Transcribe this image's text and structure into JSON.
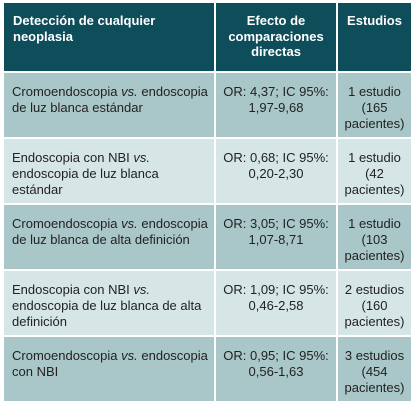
{
  "header": {
    "col1": "Detección de cualquier neoplasia",
    "col2_line1": "Efecto de",
    "col2_line2": "comparaciones",
    "col2_line3": "directas",
    "col3": "Estudios"
  },
  "rows": [
    {
      "comp_a": "Cromoendoscopia",
      "comp_vs": "vs.",
      "comp_b": "endoscopia de luz blanca estándar",
      "effect_line1": "OR: 4,37; IC 95%:",
      "effect_line2": "1,97-9,68",
      "studies_line1": "1 estudio",
      "studies_line2": "(165",
      "studies_line3": "pacientes)"
    },
    {
      "comp_a": "Endoscopia con NBI",
      "comp_vs": "vs.",
      "comp_b": "endoscopia de luz blanca estándar",
      "effect_line1": "OR: 0,68; IC 95%:",
      "effect_line2": "0,20-2,30",
      "studies_line1": "1 estudio",
      "studies_line2": "(42",
      "studies_line3": "pacientes)"
    },
    {
      "comp_a": "Cromoendoscopia",
      "comp_vs": "vs.",
      "comp_b": "endoscopia de luz blanca de alta definición",
      "effect_line1": "OR: 3,05; IC 95%:",
      "effect_line2": "1,07-8,71",
      "studies_line1": "1 estudio",
      "studies_line2": "(103",
      "studies_line3": "pacientes)"
    },
    {
      "comp_a": "Endoscopia con NBI",
      "comp_vs": "vs.",
      "comp_b": "endoscopia de luz blanca de alta definición",
      "effect_line1": "OR: 1,09; IC 95%:",
      "effect_line2": "0,46-2,58",
      "studies_line1": "2 estudios",
      "studies_line2": "(160",
      "studies_line3": "pacientes)"
    },
    {
      "comp_a": "Cromoendoscopia",
      "comp_vs": "vs.",
      "comp_b": "endoscopia con NBI",
      "effect_line1": "OR: 0,95; IC 95%:",
      "effect_line2": "0,56-1,63",
      "studies_line1": "3 estudios",
      "studies_line2": "(454",
      "studies_line3": "pacientes)"
    }
  ],
  "colors": {
    "header_bg": "#0e4d5a",
    "row_dark": "#a9c6c9",
    "row_light": "#d6e6e7"
  }
}
